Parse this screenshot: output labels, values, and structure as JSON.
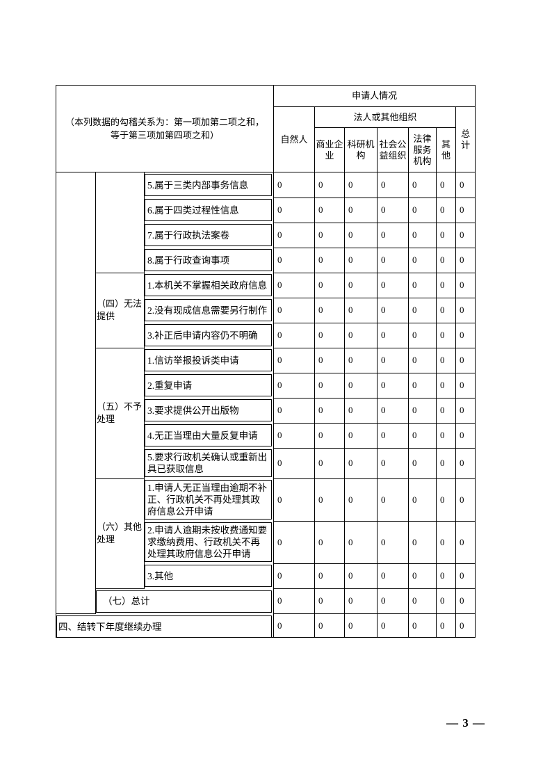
{
  "page": {
    "footer": "— 3 —"
  },
  "table": {
    "note": "（本列数据的勾稽关系为：第一项加第二项之和，\n等于第三项加第四项之和）",
    "header": {
      "applicant_title": "申请人情况",
      "natural_person": "自然人",
      "legal_org_group": "法人或其他组织",
      "org_columns": [
        "商业企业",
        "科研机构",
        "社会公益组织",
        "法律服务机构",
        "其他"
      ],
      "total": "总计"
    },
    "sections": [
      {
        "label": "",
        "rows": [
          {
            "label": "5.属于三类内部事务信息",
            "values": [
              "0",
              "0",
              "0",
              "0",
              "0",
              "0",
              "0"
            ]
          },
          {
            "label": "6.属于四类过程性信息",
            "values": [
              "0",
              "0",
              "0",
              "0",
              "0",
              "0",
              "0"
            ]
          },
          {
            "label": "7.属于行政执法案卷",
            "values": [
              "0",
              "0",
              "0",
              "0",
              "0",
              "0",
              "0"
            ]
          },
          {
            "label": "8.属于行政查询事项",
            "values": [
              "0",
              "0",
              "0",
              "0",
              "0",
              "0",
              "0"
            ]
          }
        ]
      },
      {
        "label": "（四）无法提供",
        "rows": [
          {
            "label": "1.本机关不掌握相关政府信息",
            "values": [
              "0",
              "0",
              "0",
              "0",
              "0",
              "0",
              "0"
            ]
          },
          {
            "label": "2.没有现成信息需要另行制作",
            "values": [
              "0",
              "0",
              "0",
              "0",
              "0",
              "0",
              "0"
            ]
          },
          {
            "label": "3.补正后申请内容仍不明确",
            "values": [
              "0",
              "0",
              "0",
              "0",
              "0",
              "0",
              "0"
            ]
          }
        ]
      },
      {
        "label": "（五）不予处理",
        "rows": [
          {
            "label": "1.信访举报投诉类申请",
            "values": [
              "0",
              "0",
              "0",
              "0",
              "0",
              "0",
              "0"
            ]
          },
          {
            "label": "2.重复申请",
            "values": [
              "0",
              "0",
              "0",
              "0",
              "0",
              "0",
              "0"
            ]
          },
          {
            "label": "3.要求提供公开出版物",
            "values": [
              "0",
              "0",
              "0",
              "0",
              "0",
              "0",
              "0"
            ]
          },
          {
            "label": "4.无正当理由大量反复申请",
            "values": [
              "0",
              "0",
              "0",
              "0",
              "0",
              "0",
              "0"
            ]
          },
          {
            "label": "5.要求行政机关确认或重新出具已获取信息",
            "values": [
              "0",
              "0",
              "0",
              "0",
              "0",
              "0",
              "0"
            ]
          }
        ]
      },
      {
        "label": "（六）其他处理",
        "rows": [
          {
            "label": "1.申请人无正当理由逾期不补正、行政机关不再处理其政府信息公开申请",
            "values": [
              "0",
              "0",
              "0",
              "0",
              "0",
              "0",
              "0"
            ]
          },
          {
            "label": "2.申请人逾期未按收费通知要求缴纳费用、行政机关不再处理其政府信息公开申请",
            "values": [
              "0",
              "0",
              "0",
              "0",
              "0",
              "0",
              "0"
            ]
          },
          {
            "label": "3.其他",
            "values": [
              "0",
              "0",
              "0",
              "0",
              "0",
              "0",
              "0"
            ]
          }
        ]
      }
    ],
    "total_row": {
      "label": "（七）总计",
      "values": [
        "0",
        "0",
        "0",
        "0",
        "0",
        "0",
        "0"
      ],
      "overflow_value": "0"
    },
    "carryover_row": {
      "label": "四、结转下年度继续办理",
      "values": [
        "0",
        "0",
        "0",
        "0",
        "0",
        "0",
        "0"
      ]
    }
  }
}
